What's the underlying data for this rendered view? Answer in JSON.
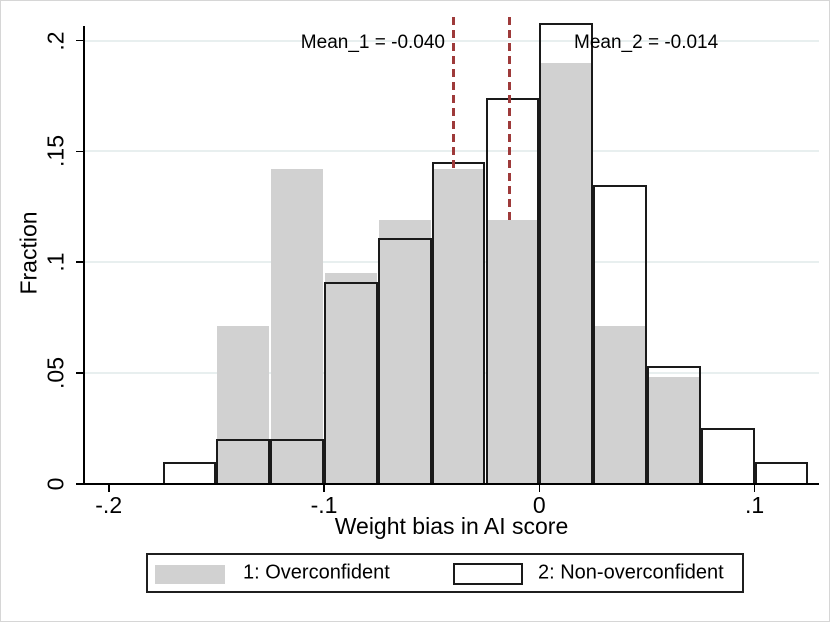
{
  "figure": {
    "background": "#ffffff",
    "border_color": "#d6d6d6"
  },
  "chart_data": {
    "type": "histogram",
    "title": "",
    "xlabel": "Weight bias in AI score",
    "ylabel": "Fraction",
    "bin_width": 0.025,
    "xlim": [
      -0.2115,
      0.131
    ],
    "ylim": [
      0,
      0.211
    ],
    "grid": true,
    "gridline_color": "#e8efef",
    "axis_color": "#000000",
    "x_ticks": [
      {
        "value": -0.2,
        "label": "-.2"
      },
      {
        "value": -0.1,
        "label": "-.1"
      },
      {
        "value": 0,
        "label": "0"
      },
      {
        "value": 0.1,
        "label": ".1"
      }
    ],
    "y_ticks": [
      {
        "value": 0,
        "label": "0"
      },
      {
        "value": 0.05,
        "label": ".05"
      },
      {
        "value": 0.1,
        "label": ".1"
      },
      {
        "value": 0.15,
        "label": ".15"
      },
      {
        "value": 0.2,
        "label": ".2"
      }
    ],
    "series": [
      {
        "name": "1: Overconfident",
        "style": "filled",
        "fill_color": "#d1d1d1",
        "bins": [
          {
            "start": -0.15,
            "fraction": 0.071
          },
          {
            "start": -0.125,
            "fraction": 0.142
          },
          {
            "start": -0.1,
            "fraction": 0.095
          },
          {
            "start": -0.075,
            "fraction": 0.119
          },
          {
            "start": -0.05,
            "fraction": 0.142
          },
          {
            "start": -0.025,
            "fraction": 0.119
          },
          {
            "start": 0.0,
            "fraction": 0.19
          },
          {
            "start": 0.025,
            "fraction": 0.071
          },
          {
            "start": 0.05,
            "fraction": 0.048
          }
        ]
      },
      {
        "name": "2: Non-overconfident",
        "style": "hollow",
        "border_color": "#1a1a1a",
        "bins": [
          {
            "start": -0.175,
            "fraction": 0.01
          },
          {
            "start": -0.15,
            "fraction": 0.02
          },
          {
            "start": -0.125,
            "fraction": 0.02
          },
          {
            "start": -0.1,
            "fraction": 0.091
          },
          {
            "start": -0.075,
            "fraction": 0.111
          },
          {
            "start": -0.05,
            "fraction": 0.145
          },
          {
            "start": -0.025,
            "fraction": 0.174
          },
          {
            "start": 0.0,
            "fraction": 0.208
          },
          {
            "start": 0.025,
            "fraction": 0.135
          },
          {
            "start": 0.05,
            "fraction": 0.053
          },
          {
            "start": 0.075,
            "fraction": 0.025
          },
          {
            "start": 0.1,
            "fraction": 0.01
          }
        ]
      }
    ],
    "mean_lines": [
      {
        "label": "Mean_1 = -0.040",
        "value": -0.04
      },
      {
        "label": "Mean_2 = -0.014",
        "value": -0.014
      }
    ],
    "mean_line_color": "#9e3a3a",
    "legend_position": "bottom-center"
  }
}
